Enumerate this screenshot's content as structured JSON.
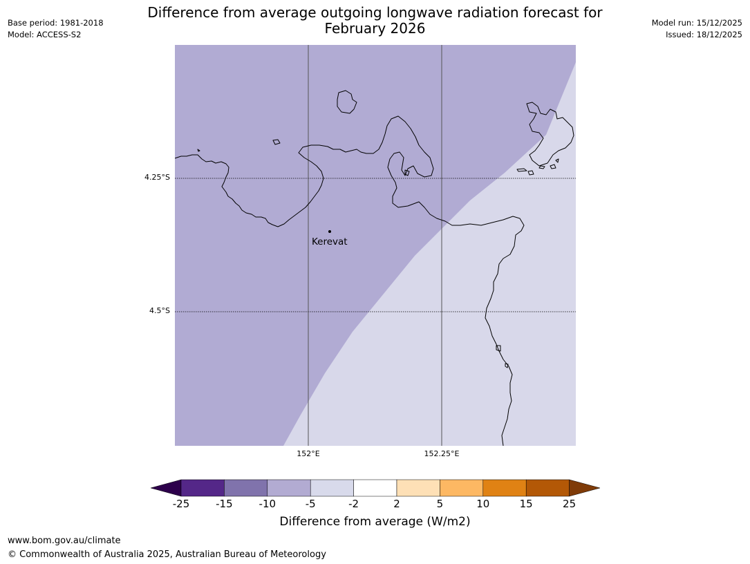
{
  "header": {
    "title_line1": "Difference from average outgoing longwave radiation forecast for",
    "title_line2": "February 2026",
    "base_period": "Base period: 1981-2018",
    "model": "Model: ACCESS-S2",
    "model_run": "Model run: 15/12/2025",
    "issued": "Issued: 18/12/2025"
  },
  "map": {
    "lat_labels": [
      "4.25°S",
      "4.5°S"
    ],
    "lon_labels": [
      "152°E",
      "152.25°E"
    ],
    "place_label": "Kerevat",
    "colors": {
      "negative_10_to_5": "#b1abd3",
      "negative_5_to_2": "#d8d8ea",
      "coastline": "#000000"
    }
  },
  "colorbar": {
    "title": "Difference from average (W/m2)",
    "tick_labels": [
      "-25",
      "-15",
      "-10",
      "-5",
      "-2",
      "2",
      "5",
      "10",
      "15",
      "25"
    ],
    "colors": [
      "#2d004b",
      "#542788",
      "#8073ac",
      "#b2abd2",
      "#d8daeb",
      "#ffffff",
      "#fee0b6",
      "#fdb863",
      "#e08214",
      "#b35806",
      "#7f3b08"
    ]
  },
  "footer": {
    "website": "www.bom.gov.au/climate",
    "copyright": "© Commonwealth of Australia 2025, Australian Bureau of Meteorology"
  }
}
